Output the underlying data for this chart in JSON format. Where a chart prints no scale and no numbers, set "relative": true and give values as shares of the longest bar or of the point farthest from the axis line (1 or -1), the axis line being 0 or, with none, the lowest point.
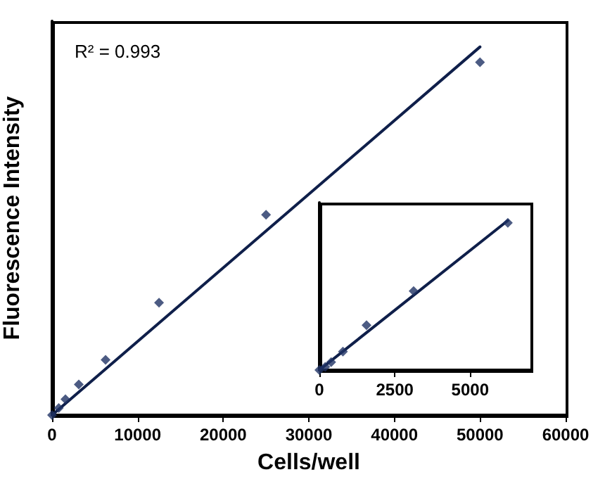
{
  "chart_data": [
    {
      "type": "scatter",
      "xlabel": "Cells/well",
      "ylabel": "Fluorescence Intensity",
      "annotations": [
        "R² = 0.993"
      ],
      "relative": true,
      "marker": "diamond",
      "xlim": [
        0,
        60000
      ],
      "xticks": [
        0,
        10000,
        20000,
        30000,
        40000,
        50000,
        60000
      ],
      "series": [
        {
          "color": "#1f3264",
          "x": [
            0,
            781,
            1563,
            3125,
            6250,
            12500,
            25000,
            50000
          ],
          "values": [
            0,
            0.019,
            0.043,
            0.083,
            0.15,
            0.305,
            0.544,
            0.958
          ]
        },
        {
          "type": "line",
          "color": "#0f1f4a",
          "line_style": "solid",
          "marker": "none",
          "x": [
            0,
            50000
          ],
          "values": [
            0,
            1
          ]
        }
      ]
    },
    {
      "type": "scatter",
      "relative": true,
      "marker": "diamond",
      "xlim": [
        0,
        7000
      ],
      "xticks": [
        0,
        2500,
        5000
      ],
      "series": [
        {
          "color": "#1f3264",
          "x": [
            0,
            195,
            391,
            781,
            1563,
            3125,
            6250
          ],
          "values": [
            0,
            0.021,
            0.053,
            0.124,
            0.3,
            0.528,
            0.985
          ]
        },
        {
          "type": "line",
          "color": "#0f1f4a",
          "line_style": "solid",
          "marker": "none",
          "x": [
            0,
            6250
          ],
          "values": [
            0,
            1
          ]
        }
      ]
    }
  ]
}
